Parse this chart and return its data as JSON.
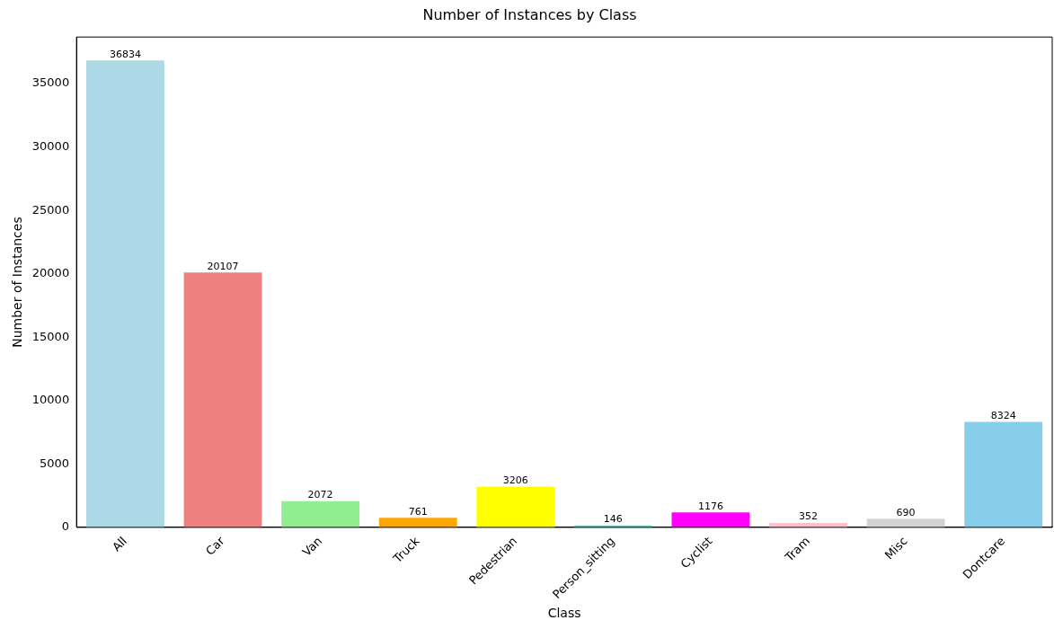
{
  "chart_data": {
    "type": "bar",
    "title": "Number of Instances by Class",
    "xlabel": "Class",
    "ylabel": "Number of Instances",
    "categories": [
      "All",
      "Car",
      "Van",
      "Truck",
      "Pedestrian",
      "Person_sitting",
      "Cyclist",
      "Tram",
      "Misc",
      "Dontcare"
    ],
    "values": [
      36834,
      20107,
      2072,
      761,
      3206,
      146,
      1176,
      352,
      690,
      8324
    ],
    "colors": [
      "#add8e6",
      "#f08080",
      "#90ee90",
      "#ffa500",
      "#ffff00",
      "#40e0d0",
      "#ff00ff",
      "#ffc0cb",
      "#d3d3d3",
      "#87ceeb"
    ],
    "ylim": [
      0,
      38676
    ],
    "yticks": [
      0,
      5000,
      10000,
      15000,
      20000,
      25000,
      30000,
      35000
    ],
    "data_labels": true,
    "grid": false,
    "legend": false
  }
}
